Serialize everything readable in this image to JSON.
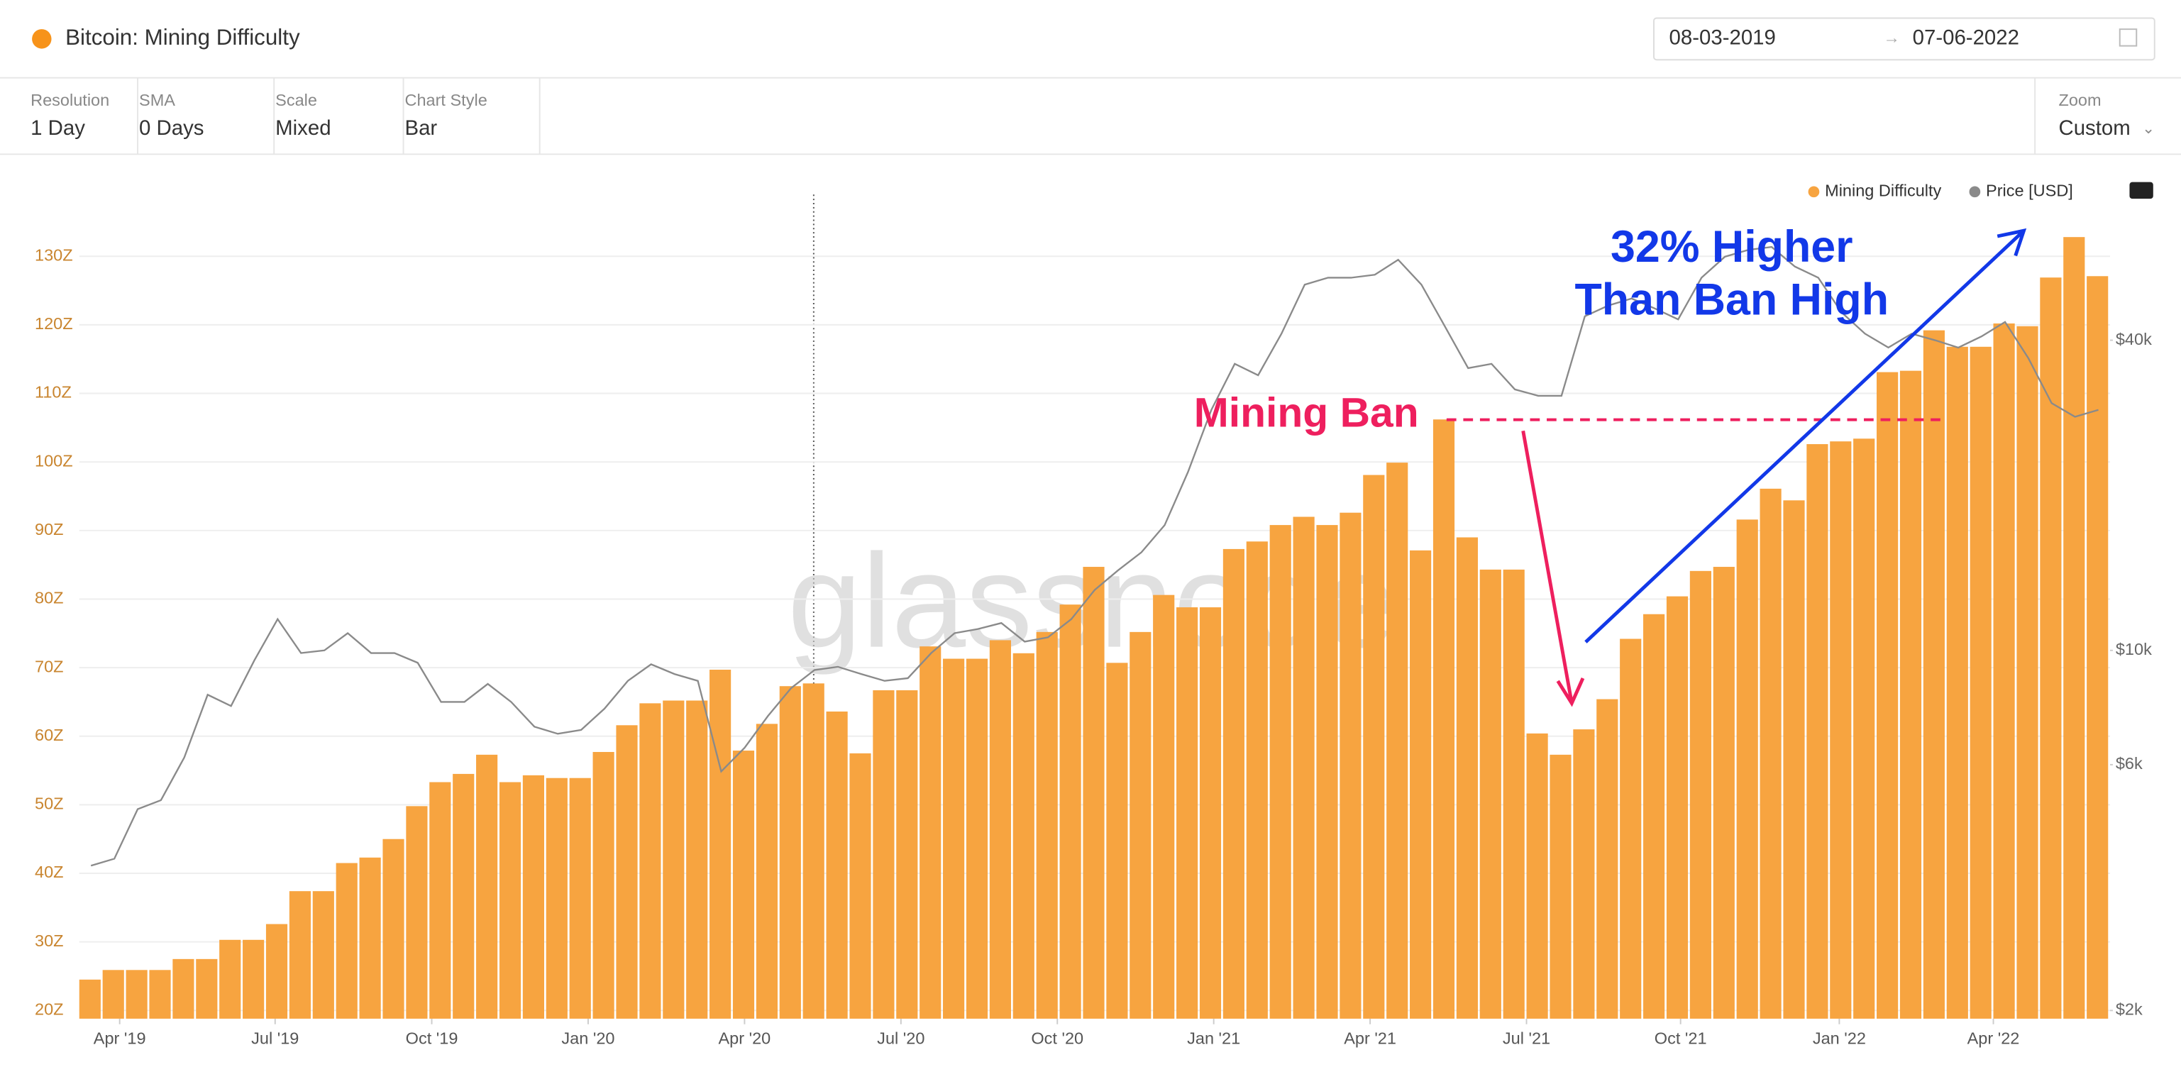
{
  "header": {
    "title": "Bitcoin: Mining Difficulty",
    "date_from": "08-03-2019",
    "date_to": "07-06-2022"
  },
  "toolbar": [
    {
      "label": "Resolution",
      "value": "1 Day"
    },
    {
      "label": "SMA",
      "value": "0 Days"
    },
    {
      "label": "Scale",
      "value": "Mixed"
    },
    {
      "label": "Chart Style",
      "value": "Bar"
    }
  ],
  "zoom": {
    "label": "Zoom",
    "value": "Custom"
  },
  "watermark": "glassnode",
  "chart_data": {
    "type": "bar",
    "categories": [
      null,
      null,
      null,
      null,
      null,
      null,
      null,
      null,
      null,
      null,
      null,
      null,
      null,
      null,
      null,
      null,
      null,
      null,
      null,
      null,
      null,
      null,
      null,
      null,
      null,
      null,
      null,
      null,
      null,
      null,
      null,
      null,
      null,
      null,
      null,
      null,
      null,
      null,
      null,
      null,
      null,
      null,
      null,
      null,
      null,
      null,
      null,
      null,
      null,
      null,
      null,
      null,
      null,
      null,
      null,
      null,
      null,
      null,
      null,
      null,
      null,
      null,
      null,
      null,
      null,
      null,
      null,
      null,
      null,
      null,
      null,
      null,
      null,
      null,
      null,
      null,
      null,
      null,
      null,
      null,
      null,
      null,
      null,
      null,
      null,
      null,
      null
    ],
    "series": [
      {
        "name": "Mining Difficulty",
        "color": "#f7a440",
        "values": [
          24.5,
          25.9,
          25.9,
          25.9,
          27.5,
          27.5,
          30.3,
          30.3,
          32.6,
          37.4,
          37.4,
          41.5,
          42.3,
          45,
          49.8,
          53.3,
          54.5,
          57.3,
          53.3,
          54.3,
          53.9,
          53.9,
          57.7,
          61.6,
          64.8,
          65.2,
          65.2,
          69.7,
          57.9,
          61.8,
          67.3,
          67.7,
          63.6,
          57.5,
          66.7,
          66.7,
          73.1,
          71.3,
          71.3,
          74,
          72.1,
          75.2,
          79.2,
          84.7,
          70.7,
          75.2,
          80.6,
          78.8,
          78.8,
          87.3,
          88.4,
          90.8,
          92,
          90.8,
          92.6,
          98.1,
          99.9,
          87.1,
          106.2,
          89,
          84.3,
          84.3,
          60.4,
          57.3,
          61,
          65.4,
          74.2,
          77.8,
          80.4,
          84.1,
          84.7,
          91.6,
          96.1,
          94.4,
          102.6,
          103,
          103.4,
          113.1,
          113.3,
          119.2,
          116.8,
          116.8,
          120.2,
          119.8,
          126.9,
          132.8,
          127.1
        ]
      },
      {
        "name": "Price [USD]",
        "color": "#8a8a8a",
        "axis": "y2",
        "type": "line",
        "values": [
          3820,
          3940,
          4920,
          5120,
          6200,
          8200,
          7800,
          9570,
          11500,
          9880,
          10000,
          10800,
          9880,
          9880,
          9460,
          7940,
          7940,
          8610,
          7940,
          7110,
          6890,
          7010,
          7710,
          8730,
          9400,
          9000,
          8730,
          5820,
          6470,
          7460,
          8450,
          9160,
          9290,
          9000,
          8730,
          8830,
          9880,
          10800,
          11000,
          11300,
          10400,
          10600,
          11500,
          13100,
          14300,
          15500,
          17500,
          22200,
          29300,
          36000,
          34200,
          41200,
          51300,
          52900,
          52900,
          53600,
          57300,
          51300,
          42600,
          35300,
          36000,
          32100,
          31200,
          31200,
          44500,
          46700,
          48200,
          46100,
          43900,
          52900,
          58100,
          59900,
          60700,
          55600,
          52900,
          45300,
          41200,
          38700,
          41200,
          40000,
          38700,
          40700,
          43400,
          36900,
          30200,
          28400,
          29300
        ]
      }
    ],
    "xlim": [
      0,
      87
    ],
    "xticks": [
      {
        "value": 1.73,
        "label": "Apr '19"
      },
      {
        "value": 8.39,
        "label": "Jul '19"
      },
      {
        "value": 15.1,
        "label": "Oct '19"
      },
      {
        "value": 21.8,
        "label": "Jan '20"
      },
      {
        "value": 28.5,
        "label": "Apr '20"
      },
      {
        "value": 35.2,
        "label": "Jul '20"
      },
      {
        "value": 41.9,
        "label": "Oct '20"
      },
      {
        "value": 48.6,
        "label": "Jan '21"
      },
      {
        "value": 55.3,
        "label": "Apr '21"
      },
      {
        "value": 62.0,
        "label": "Jul '21"
      },
      {
        "value": 68.6,
        "label": "Oct '21"
      },
      {
        "value": 75.4,
        "label": "Jan '22"
      },
      {
        "value": 82.0,
        "label": "Apr '22"
      }
    ],
    "ylim": [
      18.8,
      139
    ],
    "yticks": [
      {
        "value": 20,
        "label": "20Z"
      },
      {
        "value": 30,
        "label": "30Z"
      },
      {
        "value": 40,
        "label": "40Z"
      },
      {
        "value": 50,
        "label": "50Z"
      },
      {
        "value": 60,
        "label": "60Z"
      },
      {
        "value": 70,
        "label": "70Z"
      },
      {
        "value": 80,
        "label": "80Z"
      },
      {
        "value": 90,
        "label": "90Z"
      },
      {
        "value": 100,
        "label": "100Z"
      },
      {
        "value": 110,
        "label": "110Z"
      },
      {
        "value": 120,
        "label": "120Z"
      },
      {
        "value": 130,
        "label": "130Z"
      }
    ],
    "y2lim": [
      1928,
      76700
    ],
    "y2log": true,
    "y2ticks": [
      {
        "value": 2000,
        "label": "$2k"
      },
      {
        "value": 6000,
        "label": "$6k"
      },
      {
        "value": 10000,
        "label": "$10k"
      },
      {
        "value": 40000,
        "label": "$40k"
      }
    ],
    "grid": true,
    "legend": "top-right",
    "annotations": [
      {
        "text": "Mining Ban",
        "color": "#ee1f5e"
      },
      {
        "text": "32% Higher",
        "color": "#1238e8"
      },
      {
        "text": "Than Ban High",
        "color": "#1238e8"
      }
    ]
  }
}
